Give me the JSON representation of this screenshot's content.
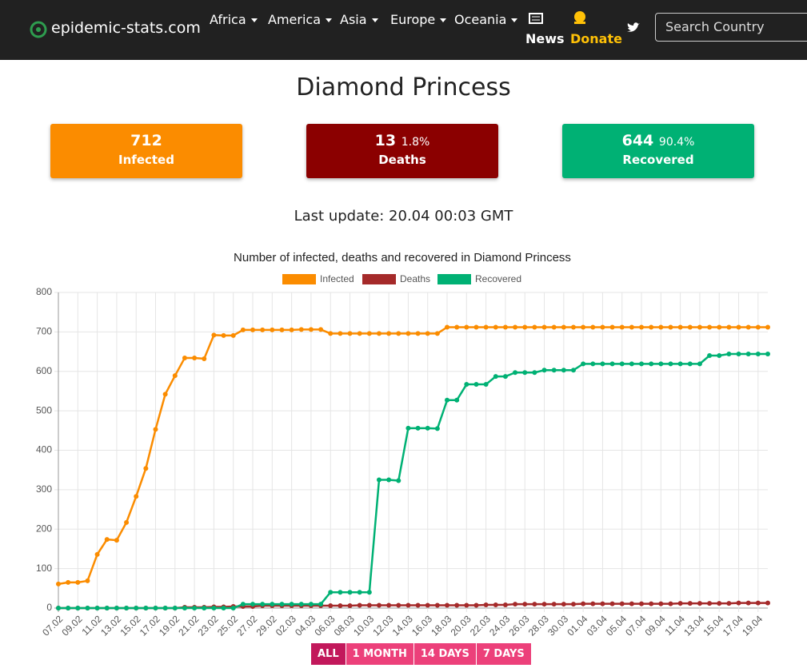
{
  "navbar": {
    "brand": "epidemic-stats.com",
    "menus": [
      "Africa",
      "America",
      "Asia",
      "Europe",
      "Oceania"
    ],
    "news": "News",
    "donate": "Donate",
    "search_placeholder": "Search Country"
  },
  "title": "Diamond Princess",
  "cards": [
    {
      "value": "712",
      "percent": null,
      "label": "Infected",
      "color": "#fb8c00"
    },
    {
      "value": "13",
      "percent": "1.8%",
      "label": "Deaths",
      "color": "#8b0000"
    },
    {
      "value": "644",
      "percent": "90.4%",
      "label": "Recovered",
      "color": "#00b174"
    }
  ],
  "last_update": "Last update: 20.04 00:03 GMT",
  "chart_data": {
    "type": "line",
    "title": "Number of infected, deaths and recovered in Diamond Princess",
    "categories": [
      "07.02",
      null,
      "09.02",
      null,
      "11.02",
      null,
      "13.02",
      null,
      "15.02",
      null,
      "17.02",
      null,
      "19.02",
      null,
      "21.02",
      null,
      "23.02",
      null,
      "25.02",
      null,
      "27.02",
      null,
      "29.02",
      null,
      "02.03",
      null,
      "04.03",
      null,
      "06.03",
      null,
      "08.03",
      null,
      "10.03",
      null,
      "12.03",
      null,
      "14.03",
      null,
      "16.03",
      null,
      "18.03",
      null,
      "20.03",
      null,
      "22.03",
      null,
      "24.03",
      null,
      "26.03",
      null,
      "28.03",
      null,
      "30.03",
      null,
      "01.04",
      null,
      "03.04",
      null,
      "05.04",
      null,
      "07.04",
      null,
      "09.04",
      null,
      "11.04",
      null,
      "13.04",
      null,
      "15.04",
      null,
      "17.04",
      null,
      "19.04",
      null
    ],
    "series": [
      {
        "name": "Infected",
        "color": "#fb8c00",
        "values": [
          61,
          65,
          65,
          69,
          136,
          174,
          172,
          217,
          283,
          354,
          453,
          542,
          589,
          634,
          634,
          632,
          692,
          691,
          691,
          705,
          705,
          705,
          705,
          705,
          705,
          706,
          706,
          706,
          696,
          696,
          696,
          696,
          696,
          696,
          696,
          696,
          696,
          696,
          696,
          696,
          712,
          712,
          712,
          712,
          712,
          712,
          712,
          712,
          712,
          712,
          712,
          712,
          712,
          712,
          712,
          712,
          712,
          712,
          712,
          712,
          712,
          712,
          712,
          712,
          712,
          712,
          712,
          712,
          712,
          712,
          712,
          712,
          712,
          712
        ]
      },
      {
        "name": "Deaths",
        "color": "#a52a2a",
        "values": [
          0,
          0,
          0,
          0,
          0,
          0,
          0,
          0,
          0,
          0,
          0,
          0,
          0,
          2,
          2,
          2,
          3,
          3,
          4,
          4,
          4,
          6,
          6,
          6,
          6,
          6,
          6,
          6,
          6,
          6,
          6,
          7,
          7,
          7,
          7,
          7,
          7,
          7,
          7,
          7,
          7,
          7,
          7,
          7,
          8,
          8,
          8,
          10,
          10,
          10,
          10,
          10,
          10,
          10,
          11,
          11,
          11,
          11,
          11,
          11,
          11,
          11,
          11,
          11,
          12,
          12,
          12,
          12,
          12,
          12,
          13,
          13,
          13,
          13
        ]
      },
      {
        "name": "Recovered",
        "color": "#00b174",
        "values": [
          0,
          0,
          0,
          0,
          0,
          0,
          0,
          0,
          0,
          0,
          0,
          0,
          0,
          0,
          0,
          0,
          0,
          0,
          0,
          10,
          10,
          10,
          10,
          10,
          10,
          10,
          10,
          10,
          40,
          40,
          40,
          40,
          40,
          325,
          325,
          323,
          456,
          456,
          456,
          455,
          527,
          527,
          567,
          567,
          567,
          587,
          587,
          597,
          597,
          597,
          603,
          603,
          603,
          603,
          619,
          619,
          619,
          619,
          619,
          619,
          619,
          619,
          619,
          619,
          619,
          619,
          619,
          640,
          640,
          644,
          644,
          644,
          644,
          644
        ]
      }
    ],
    "ylim": [
      0,
      800
    ],
    "yticks": [
      0,
      100,
      200,
      300,
      400,
      500,
      600,
      700,
      800
    ],
    "grid": true,
    "legend": "top"
  },
  "range_buttons": [
    "ALL",
    "1 MONTH",
    "14 DAYS",
    "7 DAYS"
  ]
}
